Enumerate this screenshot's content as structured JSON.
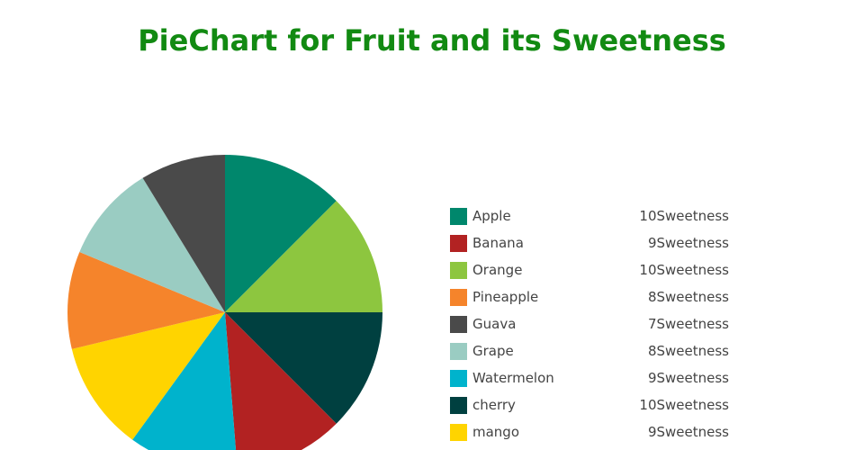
{
  "chart_data": {
    "type": "pie",
    "title": "PieChart for Fruit and its Sweetness",
    "value_suffix": "Sweetness",
    "categories": [
      "Apple",
      "Banana",
      "Orange",
      "Pineapple",
      "Guava",
      "Grape",
      "Watermelon",
      "cherry",
      "mango"
    ],
    "values": [
      10,
      9,
      10,
      8,
      7,
      8,
      9,
      10,
      9
    ],
    "value_labels": [
      "10Sweetness",
      "9Sweetness",
      "10Sweetness",
      "8Sweetness",
      "7Sweetness",
      "8Sweetness",
      "9Sweetness",
      "10Sweetness",
      "9Sweetness"
    ],
    "colors": [
      "#00876c",
      "#b22222",
      "#8dc63f",
      "#f5842b",
      "#4a4a4a",
      "#9accc2",
      "#00b3cc",
      "#004040",
      "#ffd400"
    ],
    "draw_order": [
      "Apple",
      "Orange",
      "cherry",
      "Banana",
      "Watermelon",
      "mango",
      "Pineapple",
      "Grape",
      "Guava"
    ],
    "direction": "clockwise",
    "start": "12 o'clock",
    "legend_position": "right"
  }
}
